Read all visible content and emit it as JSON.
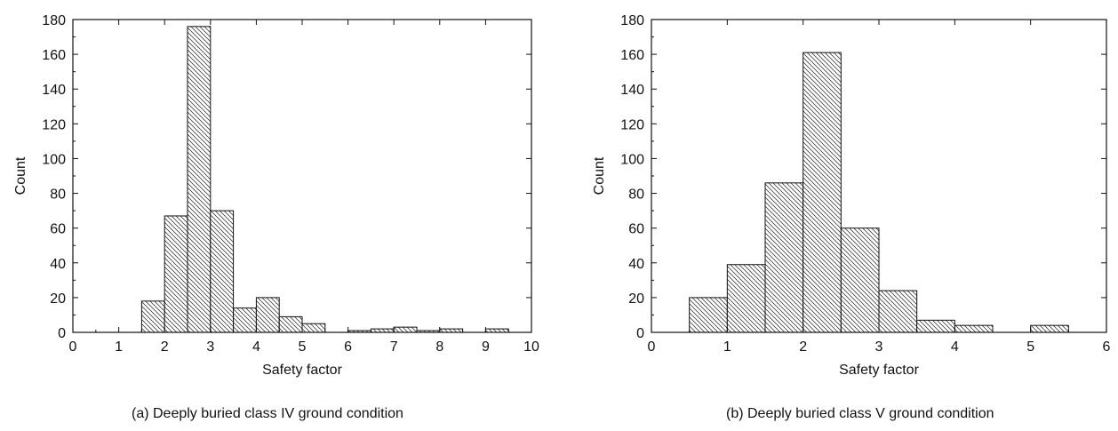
{
  "chart_data": [
    {
      "type": "bar",
      "caption": "(a) Deeply buried class IV ground condition",
      "xlabel": "Safety factor",
      "ylabel": "Count",
      "xlim": [
        0,
        10
      ],
      "ylim": [
        0,
        180
      ],
      "xticks": [
        0,
        1,
        2,
        3,
        4,
        5,
        6,
        7,
        8,
        9,
        10
      ],
      "yticks": [
        0,
        20,
        40,
        60,
        80,
        100,
        120,
        140,
        160,
        180
      ],
      "bin_width": 0.5,
      "bins": [
        {
          "x0": 1.5,
          "count": 18
        },
        {
          "x0": 2.0,
          "count": 67
        },
        {
          "x0": 2.5,
          "count": 176
        },
        {
          "x0": 3.0,
          "count": 70
        },
        {
          "x0": 3.5,
          "count": 14
        },
        {
          "x0": 4.0,
          "count": 20
        },
        {
          "x0": 4.5,
          "count": 9
        },
        {
          "x0": 5.0,
          "count": 5
        },
        {
          "x0": 6.0,
          "count": 1
        },
        {
          "x0": 6.5,
          "count": 2
        },
        {
          "x0": 7.0,
          "count": 3
        },
        {
          "x0": 7.5,
          "count": 1
        },
        {
          "x0": 8.0,
          "count": 2
        },
        {
          "x0": 9.0,
          "count": 2
        }
      ]
    },
    {
      "type": "bar",
      "caption": "(b) Deeply buried class V ground condition",
      "xlabel": "Safety factor",
      "ylabel": "Count",
      "xlim": [
        0,
        6
      ],
      "ylim": [
        0,
        180
      ],
      "xticks": [
        0,
        1,
        2,
        3,
        4,
        5,
        6
      ],
      "yticks": [
        0,
        20,
        40,
        60,
        80,
        100,
        120,
        140,
        160,
        180
      ],
      "bin_width": 0.5,
      "bins": [
        {
          "x0": 0.5,
          "count": 20
        },
        {
          "x0": 1.0,
          "count": 39
        },
        {
          "x0": 1.5,
          "count": 86
        },
        {
          "x0": 2.0,
          "count": 161
        },
        {
          "x0": 2.5,
          "count": 60
        },
        {
          "x0": 3.0,
          "count": 24
        },
        {
          "x0": 3.5,
          "count": 7
        },
        {
          "x0": 4.0,
          "count": 4
        },
        {
          "x0": 5.0,
          "count": 4
        }
      ]
    }
  ]
}
